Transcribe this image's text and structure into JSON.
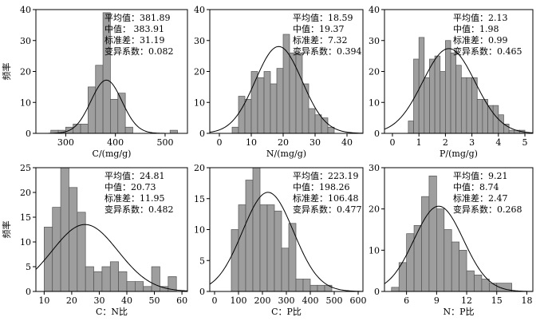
{
  "chart_data": [
    {
      "type": "bar",
      "xlabel": "C/(mg/g)",
      "ylabel": "频率",
      "xlim": [
        240,
        545
      ],
      "ylim": [
        0,
        40
      ],
      "xticks": [
        300,
        400,
        500
      ],
      "yticks": [
        0,
        10,
        20,
        30,
        40
      ],
      "bin_edges": [
        270,
        285,
        300,
        315,
        330,
        345,
        360,
        375,
        390,
        405,
        420,
        435,
        450,
        465,
        480,
        495,
        510,
        525
      ],
      "values": [
        1,
        1,
        2,
        3,
        3,
        15,
        22,
        39,
        11,
        13,
        2,
        0,
        0,
        0,
        0,
        0,
        1
      ],
      "fit": {
        "mean": 381.89,
        "sd": 31.19,
        "scale": 1345
      },
      "stats": {
        "mean_label": "平均值：381.89",
        "median_label": "中值： 383.91",
        "sd_label": "标准差：31.19",
        "cv_label": "变异系数：0.082"
      }
    },
    {
      "type": "bar",
      "xlabel": "N/(mg/g)",
      "ylabel": "",
      "xlim": [
        -3,
        45
      ],
      "ylim": [
        0,
        40
      ],
      "xticks": [
        0,
        10,
        20,
        30,
        40
      ],
      "yticks": [
        0,
        10,
        20,
        30,
        40
      ],
      "bin_edges": [
        4,
        6,
        8,
        10,
        12,
        14,
        16,
        18,
        20,
        22,
        24,
        26,
        28,
        30,
        32,
        34,
        36
      ],
      "values": [
        2,
        12,
        11,
        20,
        18,
        20,
        16,
        21,
        32,
        26,
        26,
        16,
        8,
        6,
        5,
        2
      ],
      "fit": {
        "mean": 18.59,
        "sd": 7.32,
        "scale": 515
      },
      "stats": {
        "mean_label": "平均值：18.59",
        "median_label": "中值：19.37",
        "sd_label": "标准差：7.32",
        "cv_label": "变异系数：0.394"
      }
    },
    {
      "type": "bar",
      "xlabel": "P/(mg/g)",
      "ylabel": "",
      "xlim": [
        -0.3,
        5.3
      ],
      "ylim": [
        0,
        40
      ],
      "xticks": [
        0,
        1,
        2,
        3,
        4,
        5
      ],
      "yticks": [
        0,
        10,
        20,
        30,
        40
      ],
      "bin_edges": [
        0.6,
        0.8,
        1.0,
        1.2,
        1.4,
        1.6,
        1.8,
        2.0,
        2.2,
        2.4,
        2.6,
        2.8,
        3.0,
        3.2,
        3.4,
        3.6,
        3.8,
        4.0,
        4.2,
        4.4,
        4.6,
        4.8,
        5.0
      ],
      "values": [
        4,
        24,
        31,
        18,
        24,
        25,
        20,
        30,
        26,
        22,
        18,
        18,
        18,
        11,
        11,
        9,
        9,
        6,
        3,
        1,
        1,
        1
      ],
      "fit": {
        "mean": 2.13,
        "sd": 0.99,
        "scale": 68
      },
      "stats": {
        "mean_label": "平均值：2.13",
        "median_label": "中值：1.98",
        "sd_label": "标准差：0.99",
        "cv_label": "变异系数：0.465"
      }
    },
    {
      "type": "bar",
      "xlabel": "C：N比",
      "ylabel": "频率",
      "xlim": [
        7,
        62
      ],
      "ylim": [
        0,
        25
      ],
      "xticks": [
        10,
        20,
        30,
        40,
        50,
        60
      ],
      "yticks": [
        0,
        5,
        10,
        15,
        20,
        25
      ],
      "bin_edges": [
        10,
        13,
        16,
        19,
        22,
        25,
        28,
        31,
        34,
        37,
        40,
        43,
        46,
        49,
        52,
        55,
        58
      ],
      "values": [
        13,
        17,
        25,
        21,
        16,
        5,
        4,
        5,
        6,
        4,
        2,
        2,
        1,
        5,
        1,
        3
      ],
      "fit": {
        "mean": 24.81,
        "sd": 11.95,
        "scale": 405
      },
      "stats": {
        "mean_label": "平均值：24.81",
        "median_label": "中值：20.73",
        "sd_label": "标准差：11.95",
        "cv_label": "变异系数：0.482"
      }
    },
    {
      "type": "bar",
      "xlabel": "C：P比",
      "ylabel": "",
      "xlim": [
        -20,
        620
      ],
      "ylim": [
        0,
        20
      ],
      "xticks": [
        0,
        100,
        200,
        300,
        400,
        500,
        600
      ],
      "yticks": [
        0,
        5,
        10,
        15,
        20
      ],
      "bin_edges": [
        70,
        100,
        130,
        160,
        190,
        220,
        250,
        280,
        310,
        340,
        370,
        400,
        430,
        460,
        490,
        520
      ],
      "values": [
        10,
        14,
        18,
        20,
        14,
        14,
        13,
        7,
        11,
        2,
        2,
        1,
        1,
        1,
        0
      ],
      "fit": {
        "mean": 223.19,
        "sd": 106.48,
        "scale": 4275
      },
      "stats": {
        "mean_label": "平均值：223.19",
        "median_label": "中值：198.26",
        "sd_label": "标准差：106.48",
        "cv_label": "变异系数：0.477"
      }
    },
    {
      "type": "bar",
      "xlabel": "N：P比",
      "ylabel": "",
      "xlim": [
        3.8,
        18.6
      ],
      "ylim": [
        0,
        30
      ],
      "xticks": [
        6,
        9,
        12,
        15,
        18
      ],
      "yticks": [
        0,
        10,
        20,
        30
      ],
      "bin_edges": [
        4.5,
        5.25,
        6.0,
        6.75,
        7.5,
        8.25,
        9.0,
        9.75,
        10.5,
        11.25,
        12.0,
        12.75,
        13.5,
        14.25,
        15.0,
        16.5
      ],
      "values": [
        1,
        7,
        14,
        16,
        23,
        28,
        20,
        15,
        12,
        10,
        5,
        4,
        3,
        2,
        2
      ],
      "fit": {
        "mean": 9.21,
        "sd": 2.47,
        "scale": 128
      },
      "stats": {
        "mean_label": "平均值：9.21",
        "median_label": "中值：8.74",
        "sd_label": "标准差：2.47",
        "cv_label": "变异系数：0.268"
      }
    }
  ]
}
